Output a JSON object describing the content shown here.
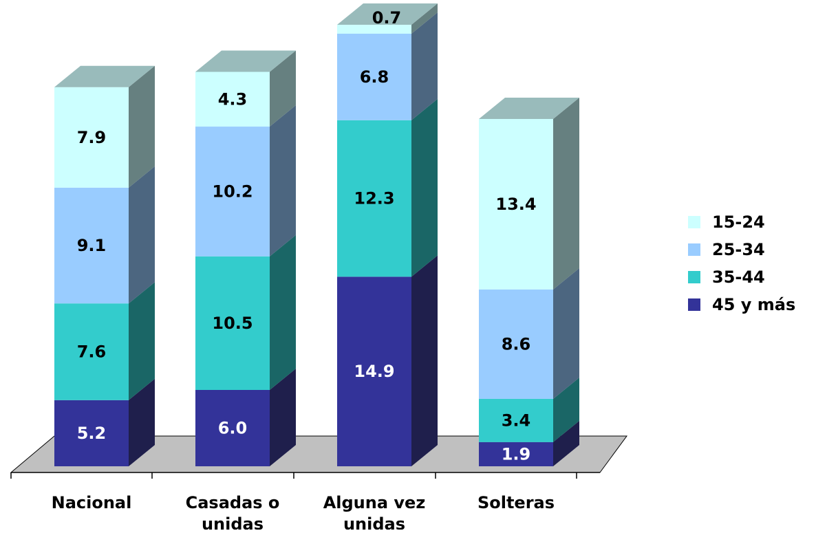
{
  "chart_data": {
    "type": "bar",
    "stacked": true,
    "three_d": true,
    "categories": [
      "Nacional",
      "Casadas o unidas",
      "Alguna vez unidas",
      "Solteras"
    ],
    "category_lines": [
      [
        "Nacional"
      ],
      [
        "Casadas o",
        "unidas"
      ],
      [
        "Alguna vez",
        "unidas"
      ],
      [
        "Solteras"
      ]
    ],
    "series": [
      {
        "name": "45 y más",
        "color": "#333399",
        "side_color": "#1F1F4C",
        "label_color": "#ffffff",
        "values": [
          5.2,
          6.0,
          14.9,
          1.9
        ]
      },
      {
        "name": "35-44",
        "color": "#33CCCC",
        "side_color": "#1A6666",
        "label_color": "#000000",
        "values": [
          7.6,
          10.5,
          12.3,
          3.4
        ]
      },
      {
        "name": "25-34",
        "color": "#99CCFF",
        "side_color": "#4C6680",
        "label_color": "#000000",
        "values": [
          9.1,
          10.2,
          6.8,
          8.6
        ]
      },
      {
        "name": "15-24",
        "color": "#CCFFFF",
        "side_color": "#668080",
        "label_color": "#000000",
        "values": [
          7.9,
          4.3,
          0.7,
          13.4
        ]
      }
    ],
    "value_labels": [
      [
        "5.2",
        "6.0",
        "14.9",
        "1.9"
      ],
      [
        "7.6",
        "10.5",
        "12.3",
        "3.4"
      ],
      [
        "9.1",
        "10.2",
        "6.8",
        "8.6"
      ],
      [
        "7.9",
        "4.3",
        "0.7",
        "13.4"
      ]
    ],
    "legend_order": [
      "15-24",
      "25-34",
      "35-44",
      "45 y más"
    ],
    "legend_position": "right",
    "floor_color": "#C0C0C0",
    "top_color": "#99BBBB",
    "grid": false,
    "title": "",
    "xlabel": "",
    "ylabel": ""
  }
}
